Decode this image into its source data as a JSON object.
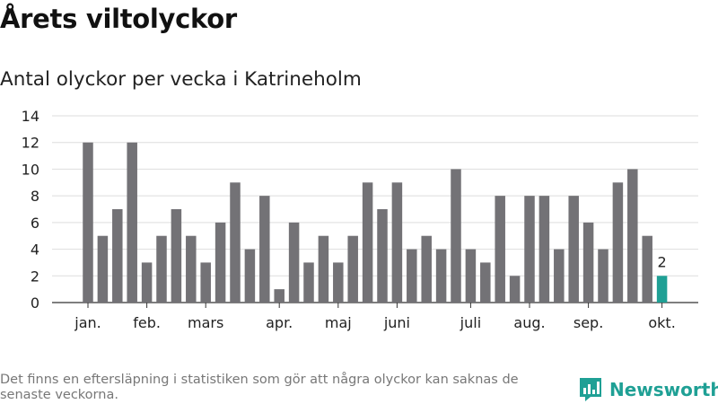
{
  "header": {
    "title": "Årets viltolyckor",
    "subtitle": "Antal olyckor per vecka i Katrineholm"
  },
  "footer": {
    "note": "Det finns en eftersläpning i statistiken som gör att några olyckor kan saknas de senaste veckorna.",
    "brand": "Newsworthy"
  },
  "colors": {
    "bar": "#737276",
    "highlight": "#1fa095",
    "grid": "#dedede",
    "axis": "#333333",
    "brand": "#1fa095"
  },
  "chart_data": {
    "type": "bar",
    "title": "Antal olyckor per vecka i Katrineholm",
    "xlabel": "",
    "ylabel": "",
    "ylim": [
      0,
      14
    ],
    "yticks": [
      0,
      2,
      4,
      6,
      8,
      10,
      12,
      14
    ],
    "grid": true,
    "weeks": [
      1,
      2,
      3,
      4,
      5,
      6,
      7,
      8,
      9,
      10,
      11,
      12,
      13,
      14,
      15,
      16,
      17,
      18,
      19,
      20,
      21,
      22,
      23,
      24,
      25,
      26,
      27,
      28,
      29,
      30,
      31,
      32,
      33,
      34,
      35,
      36,
      37,
      38,
      39,
      40
    ],
    "values": [
      12,
      5,
      7,
      12,
      3,
      5,
      7,
      5,
      3,
      6,
      9,
      4,
      8,
      1,
      6,
      3,
      5,
      3,
      5,
      9,
      7,
      9,
      4,
      5,
      4,
      10,
      4,
      3,
      8,
      2,
      8,
      8,
      4,
      8,
      6,
      4,
      9,
      10,
      5,
      2
    ],
    "highlight_index": 39,
    "highlight_label": "2",
    "month_labels": [
      {
        "label": "jan.",
        "week": 1
      },
      {
        "label": "feb.",
        "week": 5
      },
      {
        "label": "mars",
        "week": 9
      },
      {
        "label": "apr.",
        "week": 14
      },
      {
        "label": "maj",
        "week": 18
      },
      {
        "label": "juni",
        "week": 22
      },
      {
        "label": "juli",
        "week": 27
      },
      {
        "label": "aug.",
        "week": 31
      },
      {
        "label": "sep.",
        "week": 35
      },
      {
        "label": "okt.",
        "week": 40
      }
    ]
  }
}
